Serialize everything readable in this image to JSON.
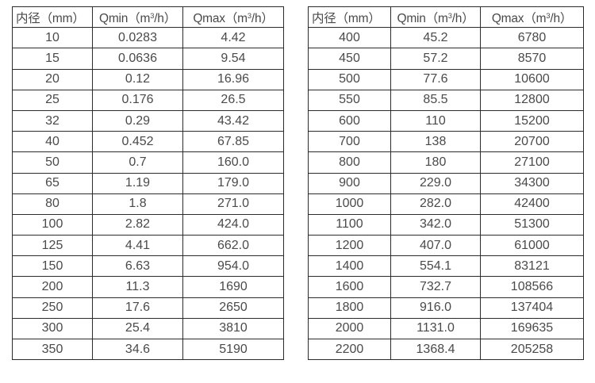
{
  "colors": {
    "border": "#2b2b2b",
    "text": "#4a4a4a",
    "background": "#ffffff"
  },
  "tables": [
    {
      "title": "flow-table-small-diameters",
      "headers": [
        {
          "pre": "内径（mm）",
          "sup": "",
          "post": ""
        },
        {
          "pre": "Qmin（m",
          "sup": "3",
          "post": "/h）"
        },
        {
          "pre": "Qmax（m",
          "sup": "3",
          "post": "/h）"
        }
      ],
      "rows": [
        [
          "10",
          "0.0283",
          "4.42"
        ],
        [
          "15",
          "0.0636",
          "9.54"
        ],
        [
          "20",
          "0.12",
          "16.96"
        ],
        [
          "25",
          "0.176",
          "26.5"
        ],
        [
          "32",
          "0.29",
          "43.42"
        ],
        [
          "40",
          "0.452",
          "67.85"
        ],
        [
          "50",
          "0.7",
          "160.0"
        ],
        [
          "65",
          "1.19",
          "179.0"
        ],
        [
          "80",
          "1.8",
          "271.0"
        ],
        [
          "100",
          "2.82",
          "424.0"
        ],
        [
          "125",
          "4.41",
          "662.0"
        ],
        [
          "150",
          "6.63",
          "954.0"
        ],
        [
          "200",
          "11.3",
          "1690"
        ],
        [
          "250",
          "17.6",
          "2650"
        ],
        [
          "300",
          "25.4",
          "3810"
        ],
        [
          "350",
          "34.6",
          "5190"
        ]
      ]
    },
    {
      "title": "flow-table-large-diameters",
      "headers": [
        {
          "pre": "内径（mm）",
          "sup": "",
          "post": ""
        },
        {
          "pre": "Qmin（m",
          "sup": "3",
          "post": "/h）"
        },
        {
          "pre": "Qmax（m",
          "sup": "3",
          "post": "/h）"
        }
      ],
      "rows": [
        [
          "400",
          "45.2",
          "6780"
        ],
        [
          "450",
          "57.2",
          "8570"
        ],
        [
          "500",
          "77.6",
          "10600"
        ],
        [
          "550",
          "85.5",
          "12800"
        ],
        [
          "600",
          "110",
          "15200"
        ],
        [
          "700",
          "138",
          "20700"
        ],
        [
          "800",
          "180",
          "27100"
        ],
        [
          "900",
          "229.0",
          "34300"
        ],
        [
          "1000",
          "282.0",
          "42400"
        ],
        [
          "1100",
          "342.0",
          "51300"
        ],
        [
          "1200",
          "407.0",
          "61000"
        ],
        [
          "1400",
          "554.1",
          "83121"
        ],
        [
          "1600",
          "732.7",
          "108566"
        ],
        [
          "1800",
          "916.0",
          "137404"
        ],
        [
          "2000",
          "1131.0",
          "169635"
        ],
        [
          "2200",
          "1368.4",
          "205258"
        ]
      ]
    }
  ]
}
